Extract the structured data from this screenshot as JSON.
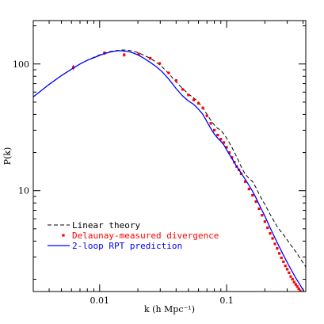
{
  "chart_data": {
    "type": "line",
    "xlabel": "k (h Mpc⁻¹)",
    "ylabel": "P(k)",
    "xscale": "log",
    "yscale": "log",
    "xlim": [
      0.003,
      0.42
    ],
    "ylim": [
      1.6,
      220
    ],
    "grid": false,
    "legend_position": "bottom-left",
    "x_tick_labels": [
      {
        "value": 0.01,
        "label": "0.01"
      },
      {
        "value": 0.1,
        "label": "0.1"
      }
    ],
    "y_tick_labels": [
      {
        "value": 10,
        "label": "10"
      },
      {
        "value": 100,
        "label": "100"
      }
    ],
    "series": [
      {
        "name": "Linear theory",
        "style": "dashed",
        "color": "#000000",
        "x": [
          0.003,
          0.004,
          0.005,
          0.006,
          0.007,
          0.008,
          0.009,
          0.01,
          0.011,
          0.012,
          0.013,
          0.014,
          0.015,
          0.016,
          0.017,
          0.018,
          0.02,
          0.022,
          0.025,
          0.028,
          0.031,
          0.035,
          0.04,
          0.045,
          0.05,
          0.055,
          0.06,
          0.065,
          0.07,
          0.075,
          0.08,
          0.085,
          0.09,
          0.095,
          0.1,
          0.11,
          0.12,
          0.13,
          0.14,
          0.15,
          0.16,
          0.17,
          0.18,
          0.19,
          0.2,
          0.22,
          0.25,
          0.28,
          0.31,
          0.35,
          0.4,
          0.42
        ],
        "y": [
          55,
          69,
          81,
          91,
          100,
          107,
          113,
          118,
          122,
          125,
          127,
          128,
          129,
          129,
          128,
          127,
          123,
          118,
          111,
          103,
          95,
          84,
          72,
          64,
          58,
          54,
          50,
          45,
          40,
          36,
          33,
          31,
          30,
          28,
          26,
          22,
          18.5,
          15.5,
          13.5,
          12.5,
          11.8,
          10.6,
          9.4,
          8.5,
          7.8,
          6.5,
          5.2,
          4.5,
          3.9,
          3.3,
          2.7,
          2.5
        ]
      },
      {
        "name": "Delaunay-measured divergence",
        "style": "markers",
        "color": "#ff0000",
        "x": [
          0.0062,
          0.0109,
          0.0156,
          0.0203,
          0.025,
          0.0297,
          0.035,
          0.04,
          0.045,
          0.05,
          0.055,
          0.06,
          0.065,
          0.07,
          0.075,
          0.08,
          0.085,
          0.09,
          0.095,
          0.1,
          0.105,
          0.11,
          0.115,
          0.12,
          0.125,
          0.13,
          0.14,
          0.15,
          0.16,
          0.17,
          0.18,
          0.19,
          0.2,
          0.21,
          0.22,
          0.23,
          0.24,
          0.25,
          0.26,
          0.27,
          0.28,
          0.29,
          0.3,
          0.31,
          0.32,
          0.33,
          0.34,
          0.35,
          0.36,
          0.37,
          0.38,
          0.39,
          0.4
        ],
        "y": [
          94,
          122,
          118,
          120,
          111,
          101,
          85,
          74,
          63,
          57,
          52,
          49,
          45,
          39,
          34,
          30,
          27.5,
          25.5,
          24,
          22,
          20,
          18.3,
          16.8,
          15.5,
          14.6,
          13.6,
          11.8,
          10.3,
          9.2,
          8.2,
          7.2,
          6.4,
          5.7,
          5.1,
          4.6,
          4.2,
          3.8,
          3.5,
          3.2,
          2.95,
          2.75,
          2.55,
          2.4,
          2.25,
          2.1,
          2.0,
          1.9,
          1.82,
          1.75,
          1.68,
          1.62,
          1.57,
          1.52
        ],
        "error": [
          4,
          4,
          4,
          3,
          3,
          2,
          2,
          2,
          1.5,
          1.5,
          1,
          1,
          1,
          0.8,
          0.8,
          0.6,
          0.6,
          0.5,
          0.5,
          0.5,
          0.4,
          0.4,
          0.3,
          0.3,
          0.3,
          0.3,
          0.2,
          0.2,
          0.2,
          0.2,
          0.15,
          0.15,
          0.12,
          0.1,
          0.1,
          0.1,
          0.08,
          0.08,
          0.07,
          0.06,
          0.06,
          0.05,
          0.05,
          0.05,
          0.04,
          0.04,
          0.04,
          0.03,
          0.03,
          0.03,
          0.03,
          0.03,
          0.03
        ]
      },
      {
        "name": "2-loop RPT prediction",
        "style": "solid",
        "color": "#0000ff",
        "x": [
          0.003,
          0.004,
          0.005,
          0.006,
          0.007,
          0.008,
          0.009,
          0.01,
          0.011,
          0.012,
          0.013,
          0.014,
          0.015,
          0.016,
          0.017,
          0.018,
          0.02,
          0.022,
          0.025,
          0.028,
          0.031,
          0.035,
          0.04,
          0.045,
          0.05,
          0.055,
          0.06,
          0.065,
          0.07,
          0.075,
          0.08,
          0.085,
          0.09,
          0.095,
          0.1,
          0.11,
          0.12,
          0.13,
          0.14,
          0.15,
          0.16,
          0.17,
          0.18,
          0.2,
          0.22,
          0.25,
          0.28,
          0.31,
          0.35,
          0.4,
          0.42
        ],
        "y": [
          55,
          69,
          81,
          91,
          100,
          107,
          112,
          117,
          121,
          124,
          126,
          127,
          127,
          126,
          125,
          123,
          118,
          112,
          103,
          95,
          87,
          76,
          64,
          56,
          51,
          48,
          44,
          40,
          35,
          31,
          28,
          26,
          24.5,
          23,
          21,
          18,
          15.5,
          13.8,
          12.3,
          11,
          9.9,
          8.8,
          7.8,
          6.3,
          5.1,
          3.9,
          3.1,
          2.55,
          2.05,
          1.65,
          1.5
        ]
      }
    ]
  }
}
